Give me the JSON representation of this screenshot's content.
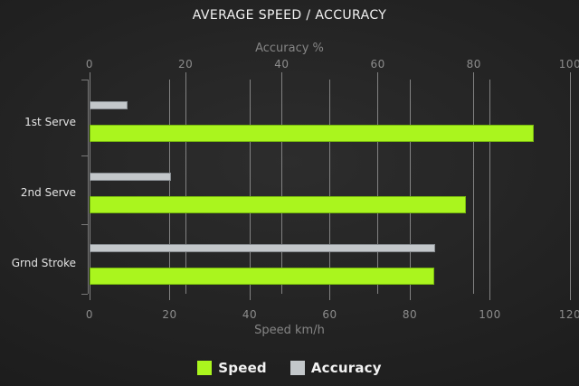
{
  "title": "AVERAGE SPEED / ACCURACY",
  "chart_data": {
    "type": "bar",
    "orientation": "horizontal",
    "title": "AVERAGE SPEED / ACCURACY",
    "categories": [
      "1st Serve",
      "2nd Serve",
      "Grnd Stroke"
    ],
    "series": [
      {
        "name": "Speed",
        "axis": "bottom",
        "color": "#aaf51e",
        "values": [
          111,
          94,
          86
        ]
      },
      {
        "name": "Accuracy",
        "axis": "top",
        "color": "#c3c7ca",
        "values": [
          8,
          17,
          72
        ]
      }
    ],
    "axes": {
      "top": {
        "label": "Accuracy %",
        "min": 0,
        "max": 100,
        "ticks": [
          0,
          20,
          40,
          60,
          80,
          100
        ]
      },
      "bottom": {
        "label": "Speed km/h",
        "min": 0,
        "max": 120,
        "ticks": [
          0,
          20,
          40,
          60,
          80,
          100,
          120
        ]
      }
    },
    "grid": true,
    "legend_position": "bottom",
    "legend": [
      "Speed",
      "Accuracy"
    ]
  },
  "colors": {
    "background_center": "#2d2d2d",
    "background_edge": "#161616",
    "gridline": "#828282",
    "tick_text": "#8c8c8c",
    "category_text": "#e3e3e3",
    "title_text": "#f2f2f2",
    "speed_bar": "#aaf51e",
    "accuracy_bar": "#c3c7ca"
  }
}
